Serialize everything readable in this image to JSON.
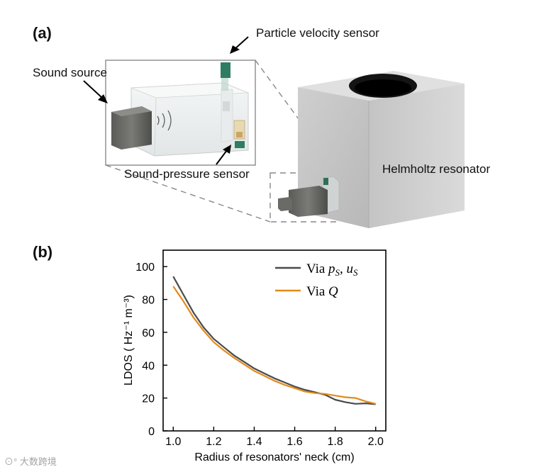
{
  "panel_a": {
    "label": "(a)",
    "callouts": {
      "particle_velocity_sensor": "Particle velocity sensor",
      "sound_source": "Sound source",
      "sound_pressure_sensor": "Sound-pressure sensor",
      "helmholtz_resonator": "Helmholtz resonator"
    }
  },
  "panel_b": {
    "label": "(b)"
  },
  "watermark": {
    "text": "大数跨境"
  },
  "chart_data": {
    "type": "line",
    "xlabel": "Radius of resonators' neck (cm)",
    "ylabel": "LDOS ( Hz⁻¹ m⁻³)",
    "xlim": [
      0.95,
      2.05
    ],
    "ylim": [
      0,
      110
    ],
    "x_ticks": [
      "1.0",
      "1.2",
      "1.4",
      "1.6",
      "1.8",
      "2.0"
    ],
    "y_ticks": [
      "0",
      "20",
      "40",
      "60",
      "80",
      "100"
    ],
    "legend_position": "top-right",
    "series": [
      {
        "name": "Via p_S, u_S",
        "color": "#4a4a4a",
        "x": [
          1.0,
          1.05,
          1.1,
          1.15,
          1.2,
          1.25,
          1.3,
          1.35,
          1.4,
          1.45,
          1.5,
          1.55,
          1.6,
          1.65,
          1.7,
          1.75,
          1.8,
          1.85,
          1.9,
          1.95,
          2.0
        ],
        "y": [
          94,
          83,
          72,
          63,
          56,
          51,
          46,
          42,
          38,
          35,
          32,
          29.5,
          27,
          25,
          23.5,
          22,
          19,
          17.5,
          16.5,
          16.8,
          16.2
        ]
      },
      {
        "name": "Via Q",
        "color": "#e38a1a",
        "x": [
          1.0,
          1.05,
          1.1,
          1.15,
          1.2,
          1.25,
          1.3,
          1.35,
          1.4,
          1.45,
          1.5,
          1.55,
          1.6,
          1.65,
          1.7,
          1.75,
          1.8,
          1.85,
          1.9,
          1.95,
          2.0
        ],
        "y": [
          88,
          79,
          69,
          61,
          54,
          49,
          44.5,
          40.5,
          36.5,
          33.5,
          30.5,
          28,
          26,
          24,
          23,
          22.5,
          21.5,
          20.5,
          20,
          18,
          16.5
        ]
      }
    ]
  }
}
